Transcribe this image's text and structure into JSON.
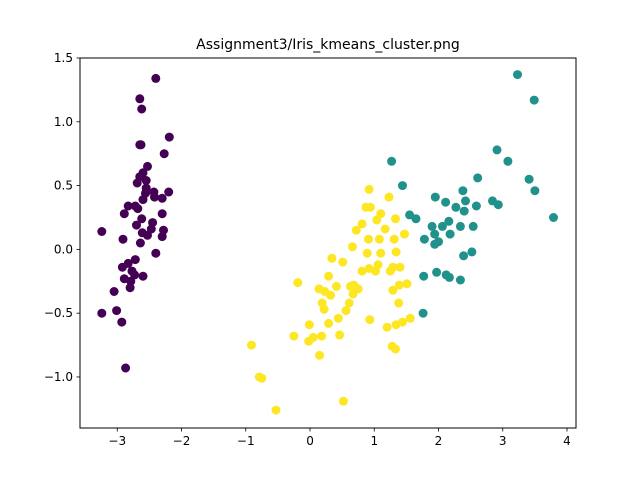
{
  "chart_data": {
    "type": "scatter",
    "title": "Assignment3/Iris_kmeans_cluster.png",
    "xlabel": "",
    "ylabel": "",
    "xlim": [
      -3.58,
      4.14
    ],
    "ylim": [
      -1.4,
      1.5
    ],
    "xticks": [
      -3,
      -2,
      -1,
      0,
      1,
      2,
      3,
      4
    ],
    "yticks": [
      -1.0,
      -0.5,
      0.0,
      0.5,
      1.0,
      1.5
    ],
    "xtick_labels": [
      "−3",
      "−2",
      "−1",
      "0",
      "1",
      "2",
      "3",
      "4"
    ],
    "ytick_labels": [
      "−1.0",
      "−0.5",
      "0.0",
      "0.5",
      "1.0",
      "1.5"
    ],
    "grid": false,
    "legend": "none",
    "series": [
      {
        "color": "#440154",
        "points": [
          [
            -2.4,
            1.34
          ],
          [
            -2.65,
            1.18
          ],
          [
            -2.62,
            1.1
          ],
          [
            -2.19,
            0.88
          ],
          [
            -2.65,
            0.82
          ],
          [
            -2.63,
            0.82
          ],
          [
            -2.27,
            0.75
          ],
          [
            -2.53,
            0.65
          ],
          [
            -2.6,
            0.6
          ],
          [
            -2.65,
            0.57
          ],
          [
            -2.55,
            0.54
          ],
          [
            -2.69,
            0.52
          ],
          [
            -2.55,
            0.48
          ],
          [
            -2.43,
            0.45
          ],
          [
            -2.2,
            0.45
          ],
          [
            -2.56,
            0.44
          ],
          [
            -2.42,
            0.41
          ],
          [
            -2.3,
            0.4
          ],
          [
            -2.6,
            0.39
          ],
          [
            -2.72,
            0.34
          ],
          [
            -2.83,
            0.34
          ],
          [
            -2.68,
            0.32
          ],
          [
            -2.89,
            0.28
          ],
          [
            -2.3,
            0.28
          ],
          [
            -2.62,
            0.24
          ],
          [
            -2.45,
            0.21
          ],
          [
            -2.7,
            0.19
          ],
          [
            -2.47,
            0.16
          ],
          [
            -2.28,
            0.15
          ],
          [
            -3.24,
            0.14
          ],
          [
            -2.61,
            0.13
          ],
          [
            -2.53,
            0.11
          ],
          [
            -2.3,
            0.1
          ],
          [
            -2.91,
            0.08
          ],
          [
            -2.64,
            0.05
          ],
          [
            -2.4,
            -0.03
          ],
          [
            -2.72,
            -0.08
          ],
          [
            -2.83,
            -0.11
          ],
          [
            -2.92,
            -0.14
          ],
          [
            -2.77,
            -0.17
          ],
          [
            -2.73,
            -0.2
          ],
          [
            -2.89,
            -0.23
          ],
          [
            -2.6,
            -0.21
          ],
          [
            -2.79,
            -0.25
          ],
          [
            -2.8,
            -0.3
          ],
          [
            -3.05,
            -0.33
          ],
          [
            -3.01,
            -0.48
          ],
          [
            -3.24,
            -0.5
          ],
          [
            -2.93,
            -0.57
          ],
          [
            -2.87,
            -0.93
          ]
        ]
      },
      {
        "color": "#21918c",
        "points": [
          [
            3.23,
            1.37
          ],
          [
            3.49,
            1.17
          ],
          [
            2.91,
            0.78
          ],
          [
            3.08,
            0.69
          ],
          [
            1.27,
            0.69
          ],
          [
            2.61,
            0.56
          ],
          [
            3.41,
            0.55
          ],
          [
            1.44,
            0.5
          ],
          [
            3.5,
            0.46
          ],
          [
            2.38,
            0.46
          ],
          [
            1.95,
            0.41
          ],
          [
            2.84,
            0.38
          ],
          [
            2.42,
            0.38
          ],
          [
            2.11,
            0.37
          ],
          [
            2.93,
            0.35
          ],
          [
            2.59,
            0.34
          ],
          [
            2.27,
            0.33
          ],
          [
            2.4,
            0.3
          ],
          [
            3.79,
            0.25
          ],
          [
            1.55,
            0.27
          ],
          [
            1.65,
            0.24
          ],
          [
            2.16,
            0.22
          ],
          [
            1.9,
            0.18
          ],
          [
            2.06,
            0.18
          ],
          [
            2.54,
            0.18
          ],
          [
            2.34,
            0.18
          ],
          [
            2.18,
            0.12
          ],
          [
            1.94,
            0.12
          ],
          [
            1.78,
            0.08
          ],
          [
            2.0,
            0.06
          ],
          [
            1.94,
            0.04
          ],
          [
            2.52,
            -0.02
          ],
          [
            2.39,
            -0.05
          ],
          [
            1.97,
            -0.18
          ],
          [
            1.77,
            -0.21
          ],
          [
            2.12,
            -0.2
          ],
          [
            2.17,
            -0.22
          ],
          [
            2.34,
            -0.24
          ],
          [
            1.76,
            -0.5
          ]
        ]
      },
      {
        "color": "#fde725",
        "points": [
          [
            0.92,
            0.47
          ],
          [
            1.23,
            0.41
          ],
          [
            1.33,
            0.24
          ],
          [
            0.94,
            0.33
          ],
          [
            0.87,
            0.33
          ],
          [
            1.1,
            0.28
          ],
          [
            1.04,
            0.23
          ],
          [
            0.81,
            0.2
          ],
          [
            1.17,
            0.16
          ],
          [
            0.72,
            0.15
          ],
          [
            0.91,
            0.08
          ],
          [
            1.08,
            0.08
          ],
          [
            0.66,
            0.02
          ],
          [
            1.31,
            0.08
          ],
          [
            1.47,
            0.12
          ],
          [
            1.34,
            -0.02
          ],
          [
            0.89,
            -0.03
          ],
          [
            1.1,
            -0.03
          ],
          [
            0.34,
            -0.07
          ],
          [
            0.51,
            -0.1
          ],
          [
            1.29,
            -0.14
          ],
          [
            0.92,
            -0.15
          ],
          [
            1.25,
            -0.17
          ],
          [
            1.02,
            -0.17
          ],
          [
            1.4,
            -0.14
          ],
          [
            0.81,
            -0.17
          ],
          [
            1.06,
            -0.12
          ],
          [
            1.39,
            -0.28
          ],
          [
            0.29,
            -0.21
          ],
          [
            0.68,
            -0.28
          ],
          [
            1.51,
            -0.27
          ],
          [
            -0.19,
            -0.26
          ],
          [
            0.63,
            -0.29
          ],
          [
            0.75,
            -0.31
          ],
          [
            1.29,
            -0.32
          ],
          [
            0.14,
            -0.31
          ],
          [
            0.41,
            -0.29
          ],
          [
            0.23,
            -0.33
          ],
          [
            0.32,
            -0.36
          ],
          [
            0.67,
            -0.35
          ],
          [
            0.19,
            -0.42
          ],
          [
            1.38,
            -0.42
          ],
          [
            0.61,
            -0.42
          ],
          [
            0.22,
            -0.47
          ],
          [
            0.56,
            -0.48
          ],
          [
            1.56,
            -0.54
          ],
          [
            0.44,
            -0.54
          ],
          [
            1.44,
            -0.57
          ],
          [
            0.93,
            -0.55
          ],
          [
            1.34,
            -0.59
          ],
          [
            -0.01,
            -0.59
          ],
          [
            0.29,
            -0.58
          ],
          [
            -0.25,
            -0.68
          ],
          [
            0.05,
            -0.69
          ],
          [
            -0.02,
            -0.72
          ],
          [
            0.18,
            -0.68
          ],
          [
            0.46,
            -0.67
          ],
          [
            1.2,
            -0.61
          ],
          [
            1.28,
            -0.76
          ],
          [
            1.33,
            -0.78
          ],
          [
            -0.91,
            -0.75
          ],
          [
            0.15,
            -0.83
          ],
          [
            -0.79,
            -1.0
          ],
          [
            -0.75,
            -1.01
          ],
          [
            0.52,
            -1.19
          ],
          [
            -0.53,
            -1.26
          ]
        ]
      }
    ]
  }
}
